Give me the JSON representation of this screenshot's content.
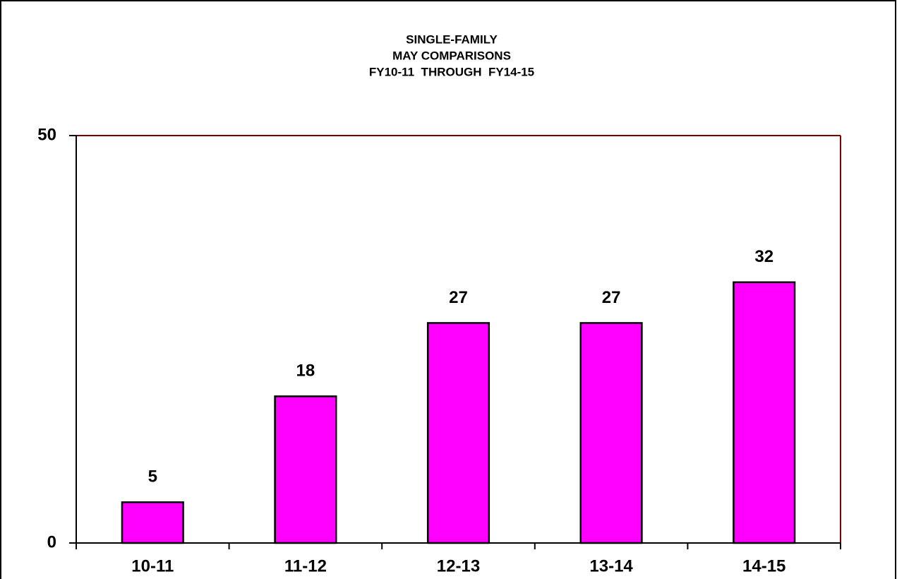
{
  "chart_data": {
    "type": "bar",
    "title": [
      "SINGLE-FAMILY",
      "MAY COMPARISONS",
      "FY10-11  THROUGH  FY14-15"
    ],
    "categories": [
      "10-11",
      "11-12",
      "12-13",
      "13-14",
      "14-15"
    ],
    "values": [
      5,
      18,
      27,
      27,
      32
    ],
    "color": "#ff00ff",
    "ylim": [
      0,
      50
    ],
    "yticks": [
      0,
      50
    ],
    "grid": false
  }
}
